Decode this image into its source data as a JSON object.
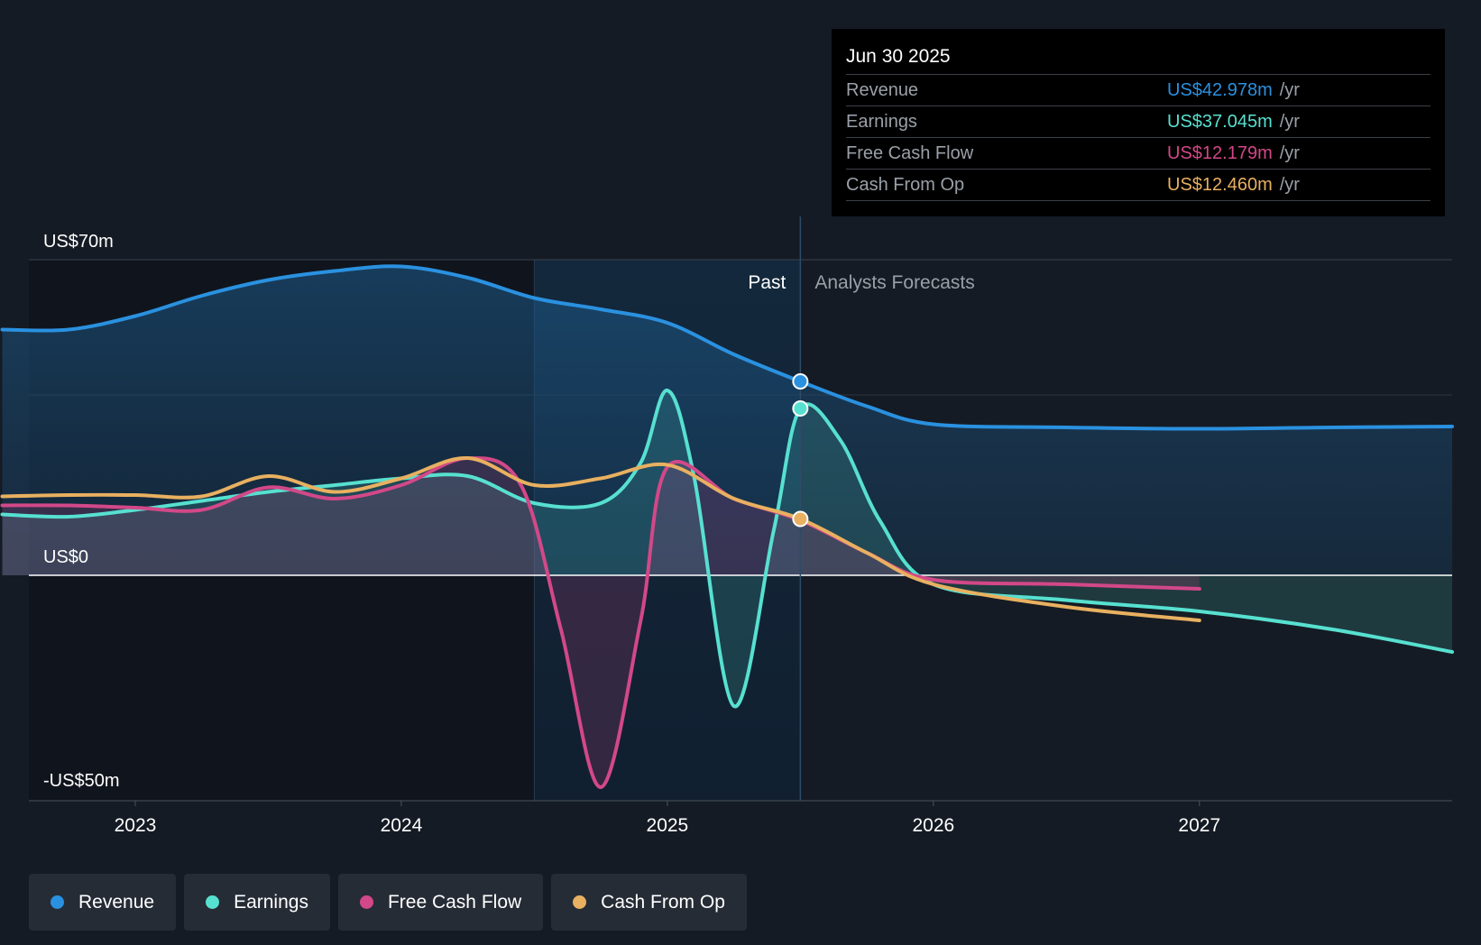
{
  "chart_data": {
    "type": "area",
    "y_axis": {
      "labels": [
        "US$70m",
        "US$0",
        "-US$50m"
      ],
      "ylim": [
        -50,
        70
      ],
      "grid": true
    },
    "x_axis": {
      "ticks": [
        "2023",
        "2024",
        "2025",
        "2026",
        "2027"
      ],
      "xlim": [
        2022.6,
        2027.95
      ]
    },
    "past_label": "Past",
    "forecast_label": "Analysts Forecasts",
    "divider_x": 2025.5,
    "series": [
      {
        "name": "Revenue",
        "color": "#2a91e0",
        "fill": true,
        "x": [
          2022.5,
          2022.75,
          2023.0,
          2023.25,
          2023.5,
          2023.75,
          2024.0,
          2024.25,
          2024.5,
          2024.75,
          2025.0,
          2025.25,
          2025.5,
          2025.75,
          2026.0,
          2026.5,
          2027.0,
          2027.5,
          2027.95
        ],
        "y": [
          54.5,
          54.5,
          57.5,
          62.0,
          65.5,
          67.5,
          68.5,
          66.0,
          61.5,
          59.0,
          56.0,
          49.0,
          43.0,
          37.5,
          33.5,
          32.8,
          32.5,
          32.8,
          33.0
        ]
      },
      {
        "name": "Earnings",
        "color": "#57e0d0",
        "fill": true,
        "x": [
          2022.5,
          2022.75,
          2023.0,
          2023.25,
          2023.5,
          2023.75,
          2024.0,
          2024.25,
          2024.5,
          2024.75,
          2024.9,
          2025.0,
          2025.1,
          2025.25,
          2025.4,
          2025.5,
          2025.65,
          2025.8,
          2026.0,
          2026.5,
          2027.0,
          2027.5,
          2027.95
        ],
        "y": [
          13.5,
          13.0,
          14.5,
          16.5,
          18.5,
          20.0,
          21.5,
          22.0,
          16.0,
          16.0,
          25.0,
          41.0,
          22.0,
          -29.0,
          10.0,
          37.0,
          30.0,
          12.0,
          -2.0,
          -5.5,
          -8.0,
          -12.0,
          -17.0
        ]
      },
      {
        "name": "Free Cash Flow",
        "color": "#d24888",
        "fill": true,
        "x": [
          2022.5,
          2022.75,
          2023.0,
          2023.25,
          2023.5,
          2023.75,
          2024.0,
          2024.25,
          2024.45,
          2024.6,
          2024.75,
          2024.9,
          2025.0,
          2025.25,
          2025.5,
          2025.75,
          2026.0,
          2026.5,
          2027.0
        ],
        "y": [
          15.5,
          15.5,
          15.0,
          14.5,
          19.5,
          17.0,
          20.0,
          26.0,
          20.0,
          -12.0,
          -47.0,
          -10.0,
          24.0,
          17.0,
          12.2,
          5.0,
          -1.0,
          -2.0,
          -3.0
        ]
      },
      {
        "name": "Cash From Op",
        "color": "#e8b060",
        "fill": false,
        "x": [
          2022.5,
          2022.75,
          2023.0,
          2023.25,
          2023.5,
          2023.75,
          2024.0,
          2024.25,
          2024.5,
          2024.75,
          2025.0,
          2025.25,
          2025.5,
          2025.75,
          2026.0,
          2026.5,
          2027.0
        ],
        "y": [
          17.5,
          17.8,
          17.8,
          17.5,
          22.0,
          18.5,
          21.5,
          26.0,
          20.0,
          21.5,
          24.5,
          17.0,
          12.5,
          5.0,
          -2.0,
          -7.0,
          -10.0
        ]
      }
    ],
    "highlight": {
      "date": "Jun 30 2025",
      "x": 2025.5,
      "rows": [
        {
          "label": "Revenue",
          "value": "US$42.978m",
          "unit": "/yr",
          "color": "#2a91e0",
          "y": 43.0
        },
        {
          "label": "Earnings",
          "value": "US$37.045m",
          "unit": "/yr",
          "color": "#57e0d0",
          "y": 37.0
        },
        {
          "label": "Free Cash Flow",
          "value": "US$12.179m",
          "unit": "/yr",
          "color": "#d24888",
          "y": 12.2
        },
        {
          "label": "Cash From Op",
          "value": "US$12.460m",
          "unit": "/yr",
          "color": "#e8b060",
          "y": 12.5
        }
      ]
    }
  },
  "legend": [
    {
      "label": "Revenue",
      "color": "#2a91e0"
    },
    {
      "label": "Earnings",
      "color": "#57e0d0"
    },
    {
      "label": "Free Cash Flow",
      "color": "#d24888"
    },
    {
      "label": "Cash From Op",
      "color": "#e8b060"
    }
  ]
}
